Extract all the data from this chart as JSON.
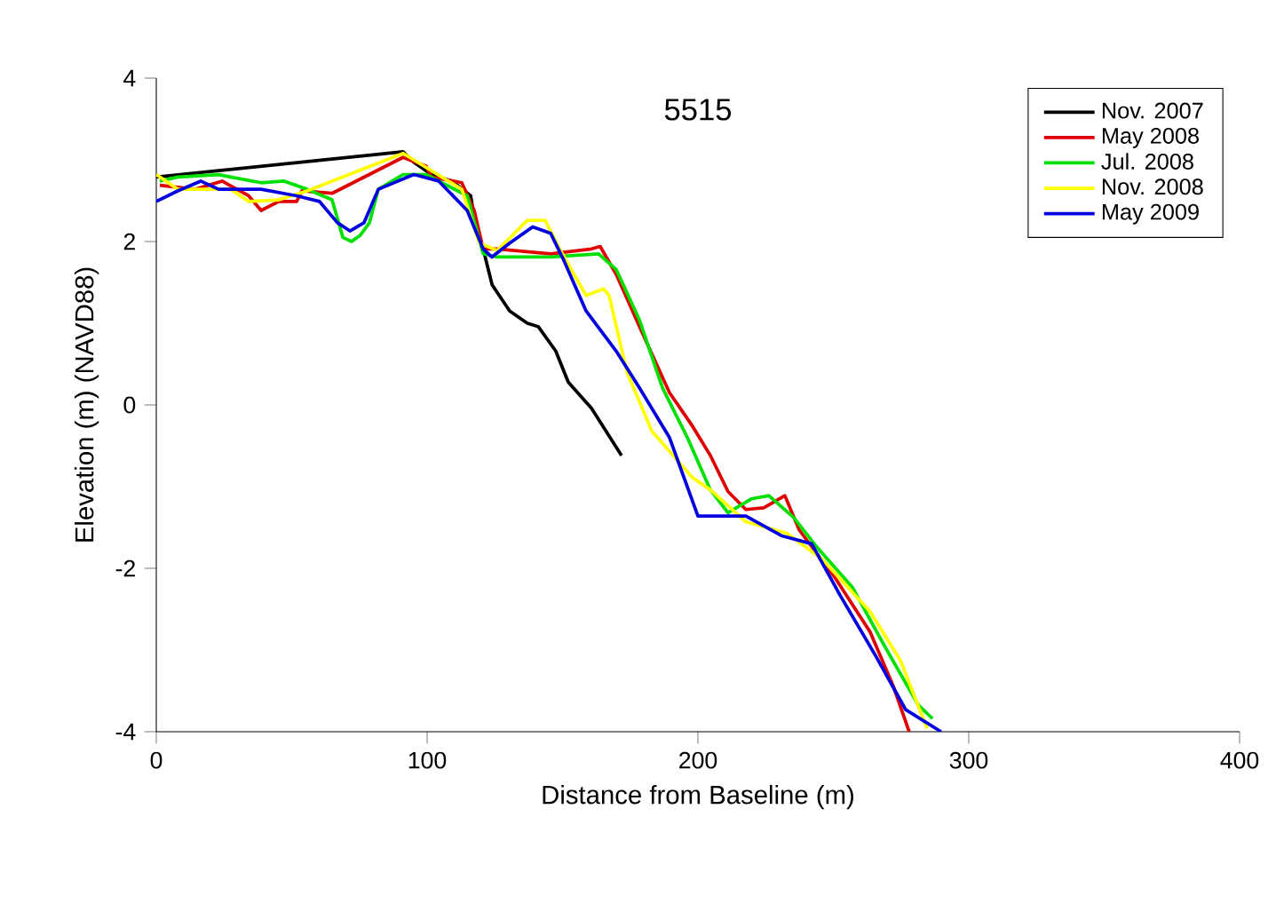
{
  "chart_data": {
    "type": "line",
    "title": "5515",
    "xlabel": "Distance from Baseline (m)",
    "ylabel": "Elevation (m) (NAVD88)",
    "xlim": [
      0,
      400
    ],
    "xticks": [
      0,
      100,
      200,
      300,
      400
    ],
    "ylim": [
      -4,
      4
    ],
    "yticks": [
      -4,
      -2,
      0,
      2,
      4
    ],
    "grid": false,
    "legend": "top right",
    "marker": "none",
    "line_style": "solid",
    "series": [
      {
        "name": "Nov. 2007",
        "color": "#000000",
        "x": [
          0,
          91.1,
          95.1,
          101.6,
          109.2,
          116.1,
          117.7,
          120.7,
          124,
          130.5,
          137,
          141,
          147.5,
          152.1,
          160.7,
          171.8
        ],
        "values": [
          2.79,
          3.1,
          2.97,
          2.82,
          2.74,
          2.56,
          2.23,
          1.91,
          1.47,
          1.15,
          1.0,
          0.96,
          0.66,
          0.28,
          -0.04,
          -0.62
        ]
      },
      {
        "name": "May 2008",
        "color": "#e00000",
        "x": [
          1.3,
          14.4,
          24.3,
          34.1,
          38.7,
          45.2,
          51.8,
          53.8,
          64.9,
          91.1,
          99.7,
          101.6,
          112.8,
          117.4,
          120.7,
          125.9,
          145.6,
          160.7,
          163.9,
          169.8,
          178.4,
          189.5,
          198,
          204.6,
          211.1,
          217.7,
          224.3,
          232.1,
          237.4,
          250.5,
          263.6,
          272.1,
          278
        ],
        "values": [
          2.69,
          2.64,
          2.74,
          2.56,
          2.38,
          2.49,
          2.49,
          2.62,
          2.59,
          3.03,
          2.92,
          2.79,
          2.72,
          2.38,
          1.91,
          1.91,
          1.85,
          1.91,
          1.94,
          1.6,
          0.96,
          0.15,
          -0.26,
          -0.62,
          -1.06,
          -1.28,
          -1.26,
          -1.11,
          -1.53,
          -2.11,
          -2.78,
          -3.44,
          -4
        ]
      },
      {
        "name": "Jul. 2008",
        "color": "#00e000",
        "x": [
          1.3,
          7.9,
          23,
          27.5,
          38.7,
          47.2,
          55.7,
          64.9,
          68.9,
          72.1,
          75.4,
          78.7,
          82,
          91.1,
          99.7,
          114.8,
          120.7,
          125.9,
          145.6,
          163.3,
          169.8,
          178.4,
          186.9,
          196.1,
          204.6,
          211.1,
          219.7,
          226.2,
          235.4,
          243.9,
          257,
          268.2,
          281.3,
          286.6
        ],
        "values": [
          2.74,
          2.79,
          2.82,
          2.79,
          2.72,
          2.74,
          2.64,
          2.51,
          2.05,
          2.0,
          2.08,
          2.23,
          2.64,
          2.82,
          2.82,
          2.56,
          1.85,
          1.81,
          1.81,
          1.85,
          1.66,
          1.04,
          0.21,
          -0.4,
          -1.04,
          -1.32,
          -1.15,
          -1.11,
          -1.38,
          -1.74,
          -2.23,
          -2.91,
          -3.67,
          -3.84
        ]
      },
      {
        "name": "Nov. 2008",
        "color": "#ffff00",
        "x": [
          0,
          7.9,
          27.5,
          34.1,
          45.2,
          55.7,
          91.1,
          95.1,
          112.8,
          119.3,
          125.9,
          137,
          143.6,
          148.9,
          158.7,
          165.2,
          167.2,
          173.8,
          183,
          198,
          204.6,
          217.7,
          232.8,
          245.9,
          263.6,
          274.8,
          284.6
        ],
        "values": [
          2.82,
          2.64,
          2.64,
          2.49,
          2.51,
          2.62,
          3.08,
          3.0,
          2.64,
          1.98,
          1.89,
          2.26,
          2.26,
          1.91,
          1.34,
          1.42,
          1.34,
          0.4,
          -0.32,
          -0.89,
          -1.04,
          -1.43,
          -1.57,
          -1.89,
          -2.53,
          -3.13,
          -3.96
        ]
      },
      {
        "name": "May 2009",
        "color": "#0000e0",
        "x": [
          0,
          7.9,
          16.4,
          23,
          38.7,
          51.8,
          60.3,
          66.9,
          71.5,
          76.7,
          82,
          95.1,
          104.3,
          114.8,
          120.7,
          123.9,
          130.5,
          139,
          145.6,
          150.2,
          158.7,
          169.8,
          178.4,
          189.5,
          200,
          217.7,
          230.8,
          242,
          252.5,
          265.6,
          276.7,
          289.8
        ],
        "values": [
          2.49,
          2.62,
          2.74,
          2.64,
          2.64,
          2.56,
          2.49,
          2.23,
          2.13,
          2.23,
          2.64,
          2.82,
          2.74,
          2.38,
          1.91,
          1.81,
          1.98,
          2.18,
          2.1,
          1.79,
          1.15,
          0.66,
          0.21,
          -0.4,
          -1.36,
          -1.36,
          -1.6,
          -1.7,
          -2.33,
          -3.07,
          -3.73,
          -4
        ]
      }
    ]
  }
}
